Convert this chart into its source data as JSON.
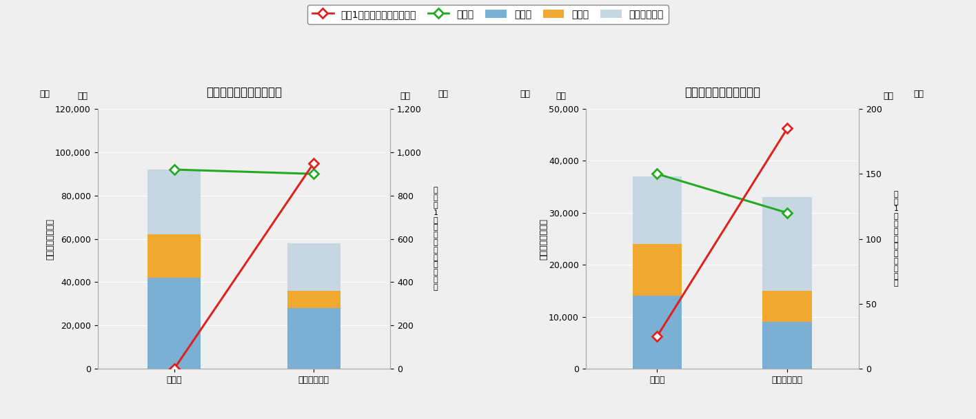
{
  "chart1": {
    "title": "《大中型まき網の事例》",
    "categories": [
      "従前値",
      "実証５年平均"
    ],
    "jinkenhi": [
      42000,
      28000
    ],
    "nenryouhi": [
      20000,
      8000
    ],
    "sonota": [
      30000,
      22000
    ],
    "seisangaku": [
      92000,
      90000
    ],
    "fuka_kachi": [
      0,
      950
    ],
    "left_ylim": [
      0,
      120000
    ],
    "right_ylim": [
      0,
      1200
    ],
    "left_yticks": [
      0,
      20000,
      40000,
      60000,
      80000,
      100000,
      120000
    ],
    "right_yticks": [
      0,
      200,
      400,
      600,
      800,
      1000,
      1200
    ],
    "left_ylabel": "生産額・操業経費",
    "right_ylabel": "乗組呴1人当たりの付加価値額"
  },
  "chart2": {
    "title": "《沖合底びき網の事例》",
    "categories": [
      "従前値",
      "実証５年平均"
    ],
    "jinkenhi": [
      14000,
      9000
    ],
    "nenryouhi": [
      10000,
      6000
    ],
    "sonota": [
      13000,
      18000
    ],
    "seisangaku": [
      37500,
      30000
    ],
    "fuka_kachi": [
      25,
      185
    ],
    "left_ylim": [
      0,
      50000
    ],
    "right_ylim": [
      0,
      200
    ],
    "left_yticks": [
      0,
      10000,
      20000,
      30000,
      40000,
      50000
    ],
    "right_yticks": [
      0,
      50,
      100,
      150,
      200
    ],
    "left_ylabel": "生産額・操業経費",
    "right_ylabel": "乗組1人当たりの付加価値額"
  },
  "colors": {
    "jinkenhi": "#7bafd4",
    "nenryouhi": "#f0a830",
    "sonota": "#c5d8e2",
    "seisangaku": "#22aa22",
    "fuka_kachi": "#dd2222"
  },
  "legend_labels": [
    "乗組1人当たりの付加価値額",
    "生産額",
    "人件費",
    "燃油費",
    "その他の経費"
  ],
  "manen": "万円",
  "background_color": "#efefef"
}
